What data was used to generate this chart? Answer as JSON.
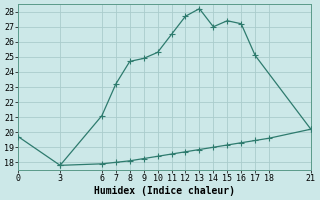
{
  "xlabel": "Humidex (Indice chaleur)",
  "bg_color": "#cce8e8",
  "grid_color": "#aacccc",
  "line_color": "#2e7b6e",
  "xlim": [
    0,
    21
  ],
  "ylim": [
    17.5,
    28.5
  ],
  "xticks": [
    0,
    3,
    6,
    7,
    8,
    9,
    10,
    11,
    12,
    13,
    14,
    15,
    16,
    17,
    18,
    21
  ],
  "yticks": [
    18,
    19,
    20,
    21,
    22,
    23,
    24,
    25,
    26,
    27,
    28
  ],
  "curve1_x": [
    3,
    6,
    7,
    8,
    9,
    10,
    11,
    12,
    13,
    14,
    15,
    16,
    17,
    21
  ],
  "curve1_y": [
    17.8,
    21.1,
    23.2,
    24.7,
    24.9,
    25.3,
    26.5,
    27.7,
    28.2,
    27.0,
    27.4,
    27.2,
    25.1,
    20.2
  ],
  "curve2_x": [
    0,
    3,
    6,
    7,
    8,
    9,
    10,
    11,
    12,
    13,
    14,
    15,
    16,
    17,
    18,
    21
  ],
  "curve2_y": [
    19.7,
    17.8,
    17.9,
    18.0,
    18.1,
    18.25,
    18.4,
    18.55,
    18.7,
    18.85,
    19.0,
    19.15,
    19.3,
    19.45,
    19.6,
    20.2
  ],
  "marker": "+",
  "markersize": 4,
  "markeredgewidth": 0.8,
  "linewidth": 0.9,
  "xlabel_fontsize": 7,
  "tick_fontsize": 6,
  "font_family": "monospace"
}
